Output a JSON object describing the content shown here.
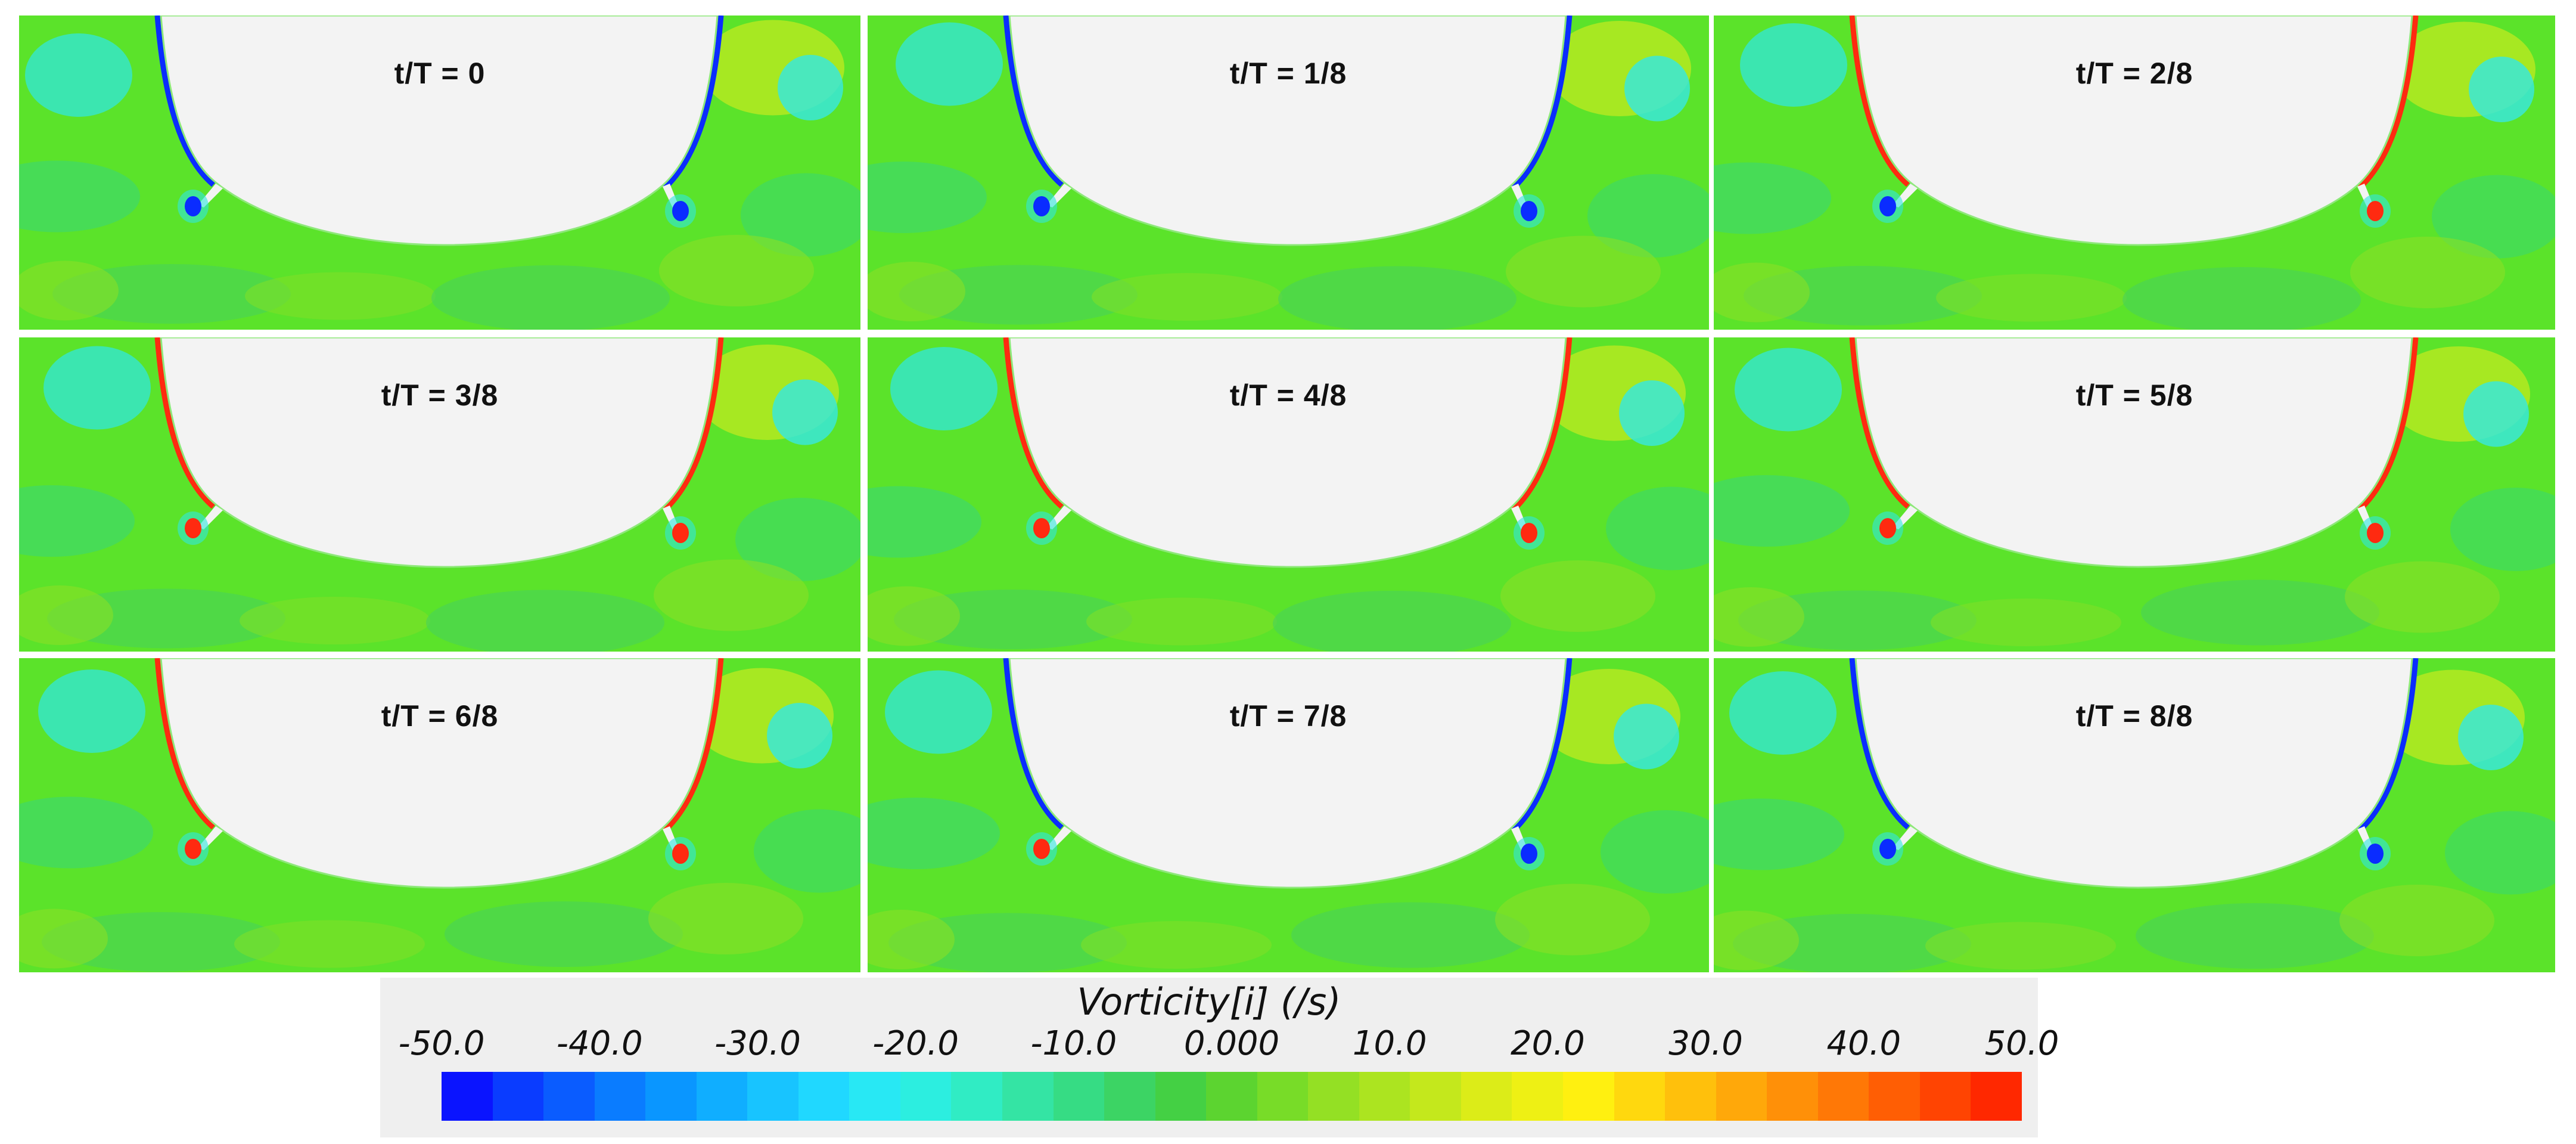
{
  "panels": [
    {
      "label": "t/T = 0",
      "left_vortex": "#0a2cff",
      "right_vortex": "#0a2cff"
    },
    {
      "label": "t/T = 1/8",
      "left_vortex": "#0a2cff",
      "right_vortex": "#0a2cff"
    },
    {
      "label": "t/T = 2/8",
      "left_vortex": "#0a2cff",
      "right_vortex": "#ff2a10"
    },
    {
      "label": "t/T = 3/8",
      "left_vortex": "#ff2a10",
      "right_vortex": "#ff2a10"
    },
    {
      "label": "t/T = 4/8",
      "left_vortex": "#ff2a10",
      "right_vortex": "#ff2a10"
    },
    {
      "label": "t/T = 5/8",
      "left_vortex": "#ff2a10",
      "right_vortex": "#ff2a10"
    },
    {
      "label": "t/T = 6/8",
      "left_vortex": "#ff2a10",
      "right_vortex": "#ff2a10"
    },
    {
      "label": "t/T = 7/8",
      "left_vortex": "#ff2a10",
      "right_vortex": "#0a2cff"
    },
    {
      "label": "t/T = 8/8",
      "left_vortex": "#0a2cff",
      "right_vortex": "#0a2cff"
    }
  ],
  "colorbar": {
    "title": "Vorticity[i] (/s)",
    "ticks": [
      "-50.0",
      "-40.0",
      "-30.0",
      "-20.0",
      "-10.0",
      "0.000",
      "10.0",
      "20.0",
      "30.0",
      "40.0",
      "50.0"
    ],
    "colors": [
      "#0a14ff",
      "#0a3cff",
      "#0a5cff",
      "#0a7cff",
      "#0a96ff",
      "#10aeff",
      "#18c4ff",
      "#20d8ff",
      "#28e8f4",
      "#2ceee0",
      "#30ecc4",
      "#34e4a4",
      "#36dc84",
      "#3cd464",
      "#44d044",
      "#5cd430",
      "#78dc28",
      "#94e024",
      "#ace420",
      "#c4e81c",
      "#dcec18",
      "#eef014",
      "#fff010",
      "#ffd80e",
      "#ffc00c",
      "#ffa80a",
      "#ff9008",
      "#ff7806",
      "#ff5e04",
      "#ff4402",
      "#ff2800"
    ]
  }
}
